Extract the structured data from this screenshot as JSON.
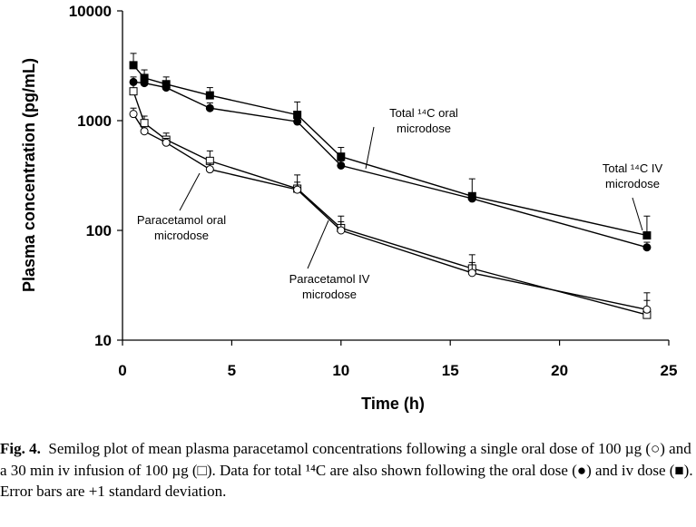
{
  "chart_data": {
    "type": "line",
    "y_scale": "log",
    "xlabel": "Time (h)",
    "ylabel": "Plasma concentration (pg/mL)",
    "xlim": [
      0,
      25
    ],
    "ylim": [
      10,
      10000
    ],
    "x_ticks": [
      "0",
      "5",
      "10",
      "15",
      "20",
      "25"
    ],
    "y_ticks": [
      "10",
      "100",
      "1000",
      "10000"
    ],
    "series": [
      {
        "marker": "filled-square",
        "x": [
          0.5,
          1,
          2,
          4,
          8,
          10,
          16,
          24
        ],
        "y": [
          3200,
          2450,
          2150,
          1700,
          1130,
          470,
          205,
          90
        ],
        "err": [
          900,
          450,
          350,
          300,
          350,
          100,
          90,
          45
        ]
      },
      {
        "marker": "filled-circle",
        "x": [
          0.5,
          1,
          2,
          4,
          8,
          10,
          16,
          24
        ],
        "y": [
          2250,
          2200,
          2000,
          1300,
          980,
          390,
          195,
          70
        ],
        "err": [
          250,
          250,
          300,
          150,
          120,
          40,
          25,
          8
        ]
      },
      {
        "marker": "open-square",
        "x": [
          0.5,
          1,
          2,
          4,
          8,
          10,
          16,
          24
        ],
        "y": [
          1850,
          950,
          670,
          430,
          240,
          105,
          45,
          17
        ],
        "err": [
          300,
          150,
          100,
          100,
          80,
          30,
          15,
          10
        ]
      },
      {
        "marker": "open-circle",
        "x": [
          0.5,
          1,
          2,
          4,
          8,
          10,
          16,
          24
        ],
        "y": [
          1150,
          800,
          630,
          360,
          235,
          100,
          41,
          19
        ],
        "err": [
          150,
          80,
          60,
          50,
          40,
          20,
          10,
          4
        ]
      }
    ],
    "annotations": [
      {
        "id": "total-oral",
        "lines": [
          "Total ¹⁴C oral",
          "microdose"
        ]
      },
      {
        "id": "total-iv",
        "lines": [
          "Total ¹⁴C IV",
          "microdose"
        ]
      },
      {
        "id": "para-oral",
        "lines": [
          "Paracetamol oral",
          "microdose"
        ]
      },
      {
        "id": "para-iv",
        "lines": [
          "Paracetamol IV",
          "microdose"
        ]
      }
    ]
  },
  "caption": {
    "label": "Fig. 4.",
    "text": "Semilog plot of mean plasma paracetamol concentrations following a single oral dose of 100 µg (○) and a 30 min iv infusion of 100 µg (□). Data for total ¹⁴C are also shown following the oral dose (●) and iv dose (■). Error bars are +1 standard deviation."
  }
}
